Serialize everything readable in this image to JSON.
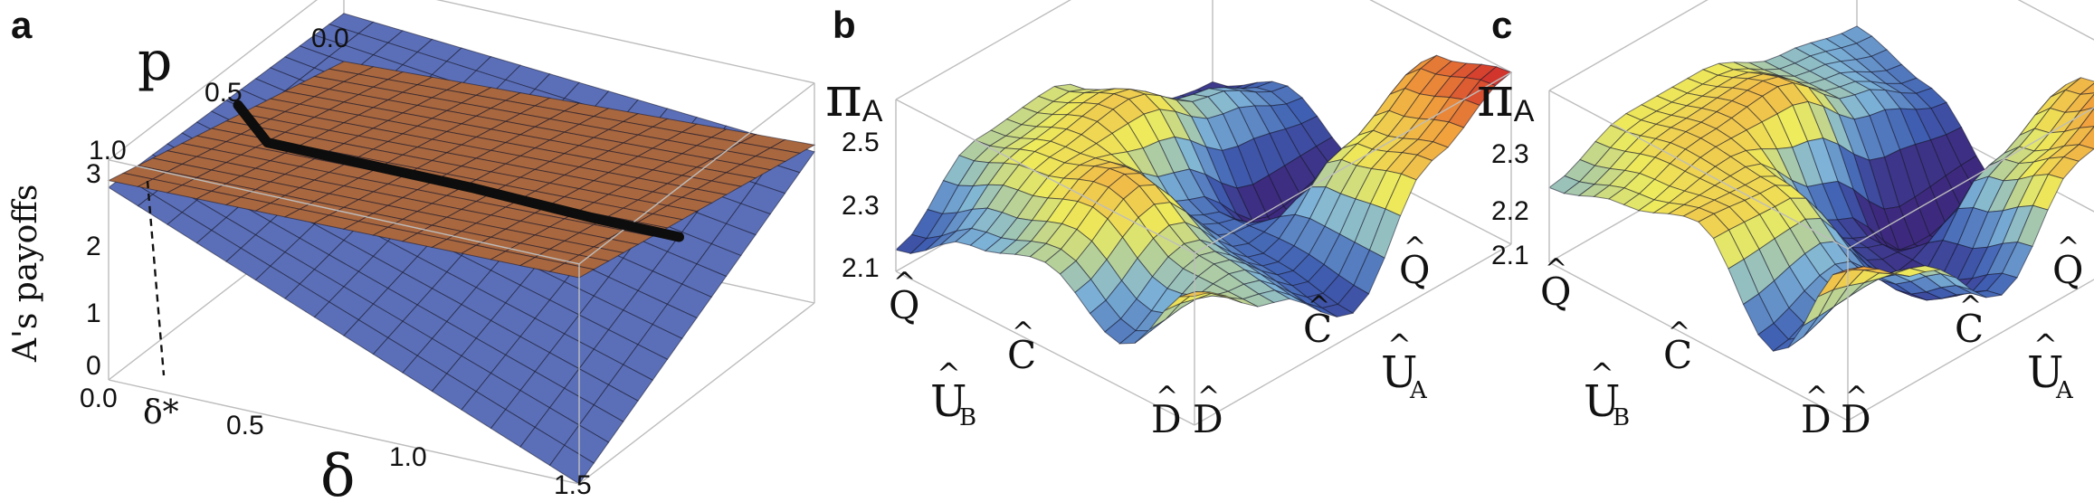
{
  "colors": {
    "blue_surface": "#5b6fb8",
    "orange_surface": "#a8673f",
    "curve": "#0d0d0d",
    "box_edge": "#bdbdbd",
    "rainbow": [
      "#3d2a7e",
      "#3f5fb2",
      "#7fb5d8",
      "#eeeb5c",
      "#f1a23c",
      "#cf2a2a"
    ]
  },
  "chart_data": [
    {
      "panel": "a",
      "type": "surface3d",
      "zlabel": "A's payoffs",
      "ylabel": "p",
      "xlabel": "δ",
      "marker_label": "δ*",
      "x_ticks": [
        "0.0",
        "0.5",
        "1.0",
        "1.5"
      ],
      "y_ticks": [
        "0.0",
        "0.5",
        "1.0"
      ],
      "z_ticks": [
        "0",
        "1",
        "2",
        "3"
      ],
      "xlim": [
        0,
        1.6
      ],
      "ylim": [
        0,
        1
      ],
      "zlim": [
        0,
        3
      ],
      "delta_star": 0.1,
      "series": [
        {
          "surface": "blue",
          "corners": {
            "d0_p0": 2.8,
            "d0_p1": 2.7,
            "dmax_p0": 0.0,
            "dmax_p1": 2.2
          }
        },
        {
          "surface": "orange",
          "corners": {
            "d0_p0": 2.9,
            "d0_p1": 2.0,
            "dmax_p0": 3.0,
            "dmax_p1": 2.3
          }
        },
        {
          "curve": "optimal",
          "points": [
            [
              0.0,
              2.55
            ],
            [
              0.1,
              2.1
            ],
            [
              0.4,
              2.1
            ],
            [
              0.8,
              2.1
            ],
            [
              1.2,
              2.05
            ],
            [
              1.5,
              2.05
            ]
          ]
        }
      ]
    },
    {
      "panel": "b",
      "type": "surface3d",
      "zlabel_main": "π",
      "zlabel_sub": "A",
      "z_ticks": [
        "2.1",
        "2.3",
        "2.5"
      ],
      "zlim": [
        2.1,
        2.5
      ],
      "x_axis_sym": "U",
      "x_axis_sub": "B",
      "x_ticks": [
        "Q",
        "C",
        "D"
      ],
      "y_axis_sym": "U",
      "y_axis_sub": "A",
      "y_ticks": [
        "D",
        "C",
        "Q"
      ],
      "grid": [
        [
          2.15,
          2.3,
          2.32,
          2.15,
          2.12
        ],
        [
          2.25,
          2.35,
          2.38,
          2.28,
          2.2
        ],
        [
          2.3,
          2.4,
          2.2,
          2.05,
          2.1
        ],
        [
          2.2,
          2.3,
          2.18,
          2.35,
          2.45
        ],
        [
          2.4,
          2.28,
          2.15,
          2.4,
          2.5
        ]
      ]
    },
    {
      "panel": "c",
      "type": "surface3d",
      "zlabel_main": "π",
      "zlabel_sub": "A",
      "z_ticks": [
        "2.1",
        "2.2",
        "2.3"
      ],
      "zlim": [
        2.1,
        2.33
      ],
      "x_axis_sym": "U",
      "x_axis_sub": "B",
      "x_ticks": [
        "Q",
        "C",
        "D"
      ],
      "y_axis_sym": "U",
      "y_axis_sub": "A",
      "y_ticks": [
        "D",
        "C",
        "Q"
      ],
      "grid": [
        [
          2.2,
          2.24,
          2.24,
          2.2,
          2.18
        ],
        [
          2.23,
          2.26,
          2.27,
          2.2,
          2.15
        ],
        [
          2.26,
          2.25,
          2.12,
          2.02,
          2.06
        ],
        [
          2.14,
          2.18,
          2.1,
          2.22,
          2.27
        ],
        [
          2.3,
          2.24,
          2.15,
          2.27,
          2.32
        ]
      ]
    }
  ]
}
